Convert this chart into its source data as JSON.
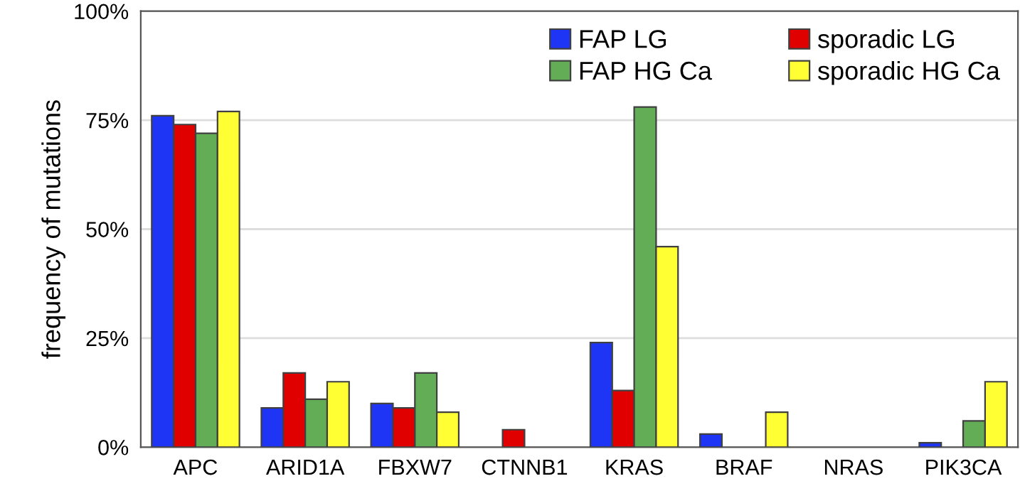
{
  "chart_data": {
    "type": "bar",
    "ylabel": "frequency of mutations",
    "categories": [
      "APC",
      "ARID1A",
      "FBXW7",
      "CTNNB1",
      "KRAS",
      "BRAF",
      "NRAS",
      "PIK3CA"
    ],
    "series": [
      {
        "name": "FAP LG",
        "color": "#1f35f5",
        "values": [
          76,
          9,
          10,
          0,
          24,
          3,
          0,
          1
        ]
      },
      {
        "name": "sporadic LG",
        "color": "#e00000",
        "values": [
          74,
          17,
          9,
          4,
          13,
          0,
          0,
          0
        ]
      },
      {
        "name": "FAP HG Ca",
        "color": "#62ad55",
        "values": [
          72,
          11,
          17,
          0,
          78,
          0,
          0,
          6
        ]
      },
      {
        "name": "sporadic HG Ca",
        "color": "#ffff33",
        "values": [
          77,
          15,
          8,
          0,
          46,
          8,
          0,
          15
        ]
      }
    ],
    "ylim": [
      0,
      100
    ],
    "yticks": [
      {
        "value": 0,
        "label": "0%"
      },
      {
        "value": 25,
        "label": "25%"
      },
      {
        "value": 50,
        "label": "50%"
      },
      {
        "value": 75,
        "label": "75%"
      },
      {
        "value": 100,
        "label": "100%"
      }
    ],
    "grid": "y",
    "legend": "top right"
  }
}
